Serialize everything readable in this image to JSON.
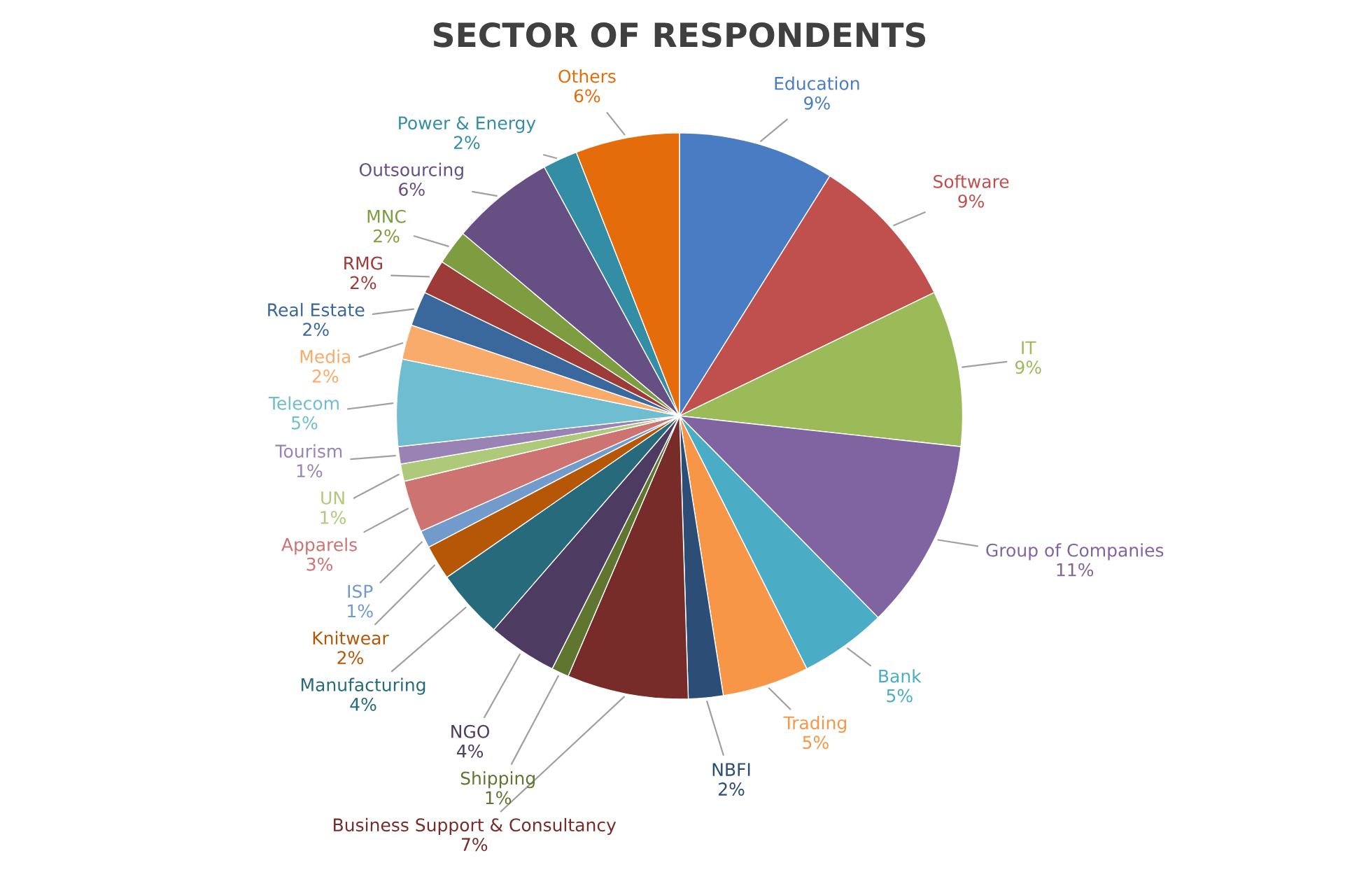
{
  "chart_data": {
    "type": "pie",
    "title": "SECTOR OF RESPONDENTS",
    "categories": [
      "Education",
      "Software",
      "IT",
      "Group of Companies",
      "Bank",
      "Trading",
      "NBFI",
      "Business Support & Consultancy",
      "Shipping",
      "NGO",
      "Manufacturing",
      "Knitwear",
      "ISP",
      "Apparels",
      "UN",
      "Tourism",
      "Telecom",
      "Media",
      "Real Estate",
      "RMG",
      "MNC",
      "Outsourcing",
      "Power & Energy",
      "Others"
    ],
    "values": [
      9,
      9,
      9,
      11,
      5,
      5,
      2,
      7,
      1,
      4,
      4,
      2,
      1,
      3,
      1,
      1,
      5,
      2,
      2,
      2,
      2,
      6,
      2,
      6
    ],
    "value_labels": [
      "9%",
      "9%",
      "9%",
      "11%",
      "5%",
      "5%",
      "2%",
      "7%",
      "1%",
      "4%",
      "4%",
      "2%",
      "1%",
      "3%",
      "1%",
      "1%",
      "5%",
      "2%",
      "2%",
      "2%",
      "2%",
      "6%",
      "2%",
      "6%"
    ],
    "colors": [
      "#4a7cc4",
      "#c0504d",
      "#9bbb59",
      "#8064a2",
      "#4bacc6",
      "#f79646",
      "#2c4d75",
      "#772c2a",
      "#5f7530",
      "#4d3b62",
      "#276a7c",
      "#b65708",
      "#729aca",
      "#cd7371",
      "#afc97a",
      "#9983b5",
      "#6fbdd1",
      "#f9ab6b",
      "#3a679c",
      "#9d3b38",
      "#7e9c40",
      "#664f83",
      "#338da5",
      "#e46c0a"
    ],
    "legend": false
  }
}
